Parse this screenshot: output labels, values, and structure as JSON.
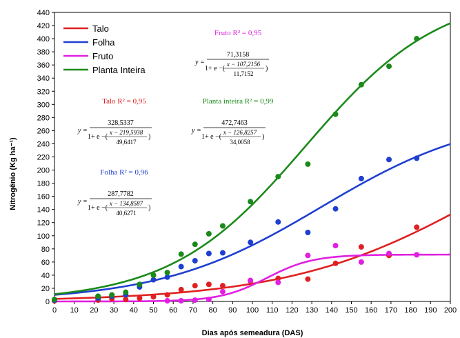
{
  "chart_data": {
    "type": "scatter",
    "xlabel": "Dias após semeadura (DAS)",
    "ylabel": "Nitrogênio (Kg ha⁻¹)",
    "xlim": [
      0,
      200
    ],
    "ylim": [
      0,
      440
    ],
    "xticks": [
      0,
      10,
      20,
      30,
      40,
      50,
      60,
      70,
      80,
      90,
      100,
      110,
      120,
      130,
      140,
      150,
      160,
      170,
      180,
      190,
      200
    ],
    "yticks": [
      0,
      20,
      40,
      60,
      80,
      100,
      120,
      140,
      160,
      180,
      200,
      220,
      240,
      260,
      280,
      300,
      320,
      340,
      360,
      380,
      400,
      420,
      440
    ],
    "grid": false,
    "legend_position": "top-left",
    "series": [
      {
        "name": "Talo",
        "color": "#e02020",
        "fit": {
          "a": 328.5337,
          "x0": 219.5938,
          "b": 49.6417,
          "y0": 0
        },
        "points": [
          [
            0,
            1
          ],
          [
            22,
            2
          ],
          [
            29,
            4
          ],
          [
            36,
            3
          ],
          [
            43,
            5
          ],
          [
            50,
            7
          ],
          [
            57,
            10
          ],
          [
            64,
            18
          ],
          [
            71,
            24
          ],
          [
            78,
            26
          ],
          [
            85,
            24
          ],
          [
            99,
            31
          ],
          [
            113,
            35
          ],
          [
            128,
            34
          ],
          [
            142,
            58
          ],
          [
            155,
            83
          ],
          [
            169,
            70
          ],
          [
            183,
            113
          ]
        ]
      },
      {
        "name": "Folha",
        "color": "#1f3fd0",
        "fit": {
          "a": 287.7782,
          "x0": 134.8587,
          "b": 40.6271,
          "y0": 0
        },
        "points": [
          [
            0,
            2
          ],
          [
            22,
            5
          ],
          [
            29,
            8
          ],
          [
            36,
            10
          ],
          [
            43,
            22
          ],
          [
            50,
            33
          ],
          [
            57,
            37
          ],
          [
            64,
            53
          ],
          [
            71,
            62
          ],
          [
            78,
            73
          ],
          [
            85,
            74
          ],
          [
            99,
            90
          ],
          [
            113,
            121
          ],
          [
            128,
            105
          ],
          [
            142,
            141
          ],
          [
            155,
            187
          ],
          [
            169,
            216
          ],
          [
            183,
            218
          ]
        ]
      },
      {
        "name": "Fruto",
        "color": "#e020e0",
        "fit": {
          "a": 71.3158,
          "x0": 107.2156,
          "b": 11.7152,
          "y0": 0
        },
        "points": [
          [
            57,
            1
          ],
          [
            64,
            1
          ],
          [
            71,
            2
          ],
          [
            78,
            3
          ],
          [
            85,
            15
          ],
          [
            99,
            32
          ],
          [
            113,
            29
          ],
          [
            128,
            70
          ],
          [
            142,
            85
          ],
          [
            155,
            60
          ],
          [
            169,
            73
          ],
          [
            183,
            71
          ]
        ]
      },
      {
        "name": "Planta Inteira",
        "color": "#1a8a1a",
        "fit": {
          "a": 472.7463,
          "x0": 126.8257,
          "b": 34.0058,
          "y0": 0
        },
        "points": [
          [
            0,
            3
          ],
          [
            22,
            8
          ],
          [
            29,
            10
          ],
          [
            36,
            14
          ],
          [
            43,
            26
          ],
          [
            50,
            40
          ],
          [
            57,
            44
          ],
          [
            64,
            72
          ],
          [
            71,
            87
          ],
          [
            78,
            103
          ],
          [
            85,
            115
          ],
          [
            99,
            152
          ],
          [
            113,
            190
          ],
          [
            128,
            209
          ],
          [
            142,
            285
          ],
          [
            155,
            330
          ],
          [
            169,
            358
          ],
          [
            183,
            400
          ]
        ]
      }
    ],
    "equations": [
      {
        "title": "Talo R² = 0,95",
        "a": "328,5337",
        "num": "x − 219,5938",
        "den": "49,6417",
        "color": "#e02020"
      },
      {
        "title": "Folha R² = 0,96",
        "a": "287,7782",
        "num": "x − 134,8587",
        "den": "40,6271",
        "color": "#1f3fd0"
      },
      {
        "title": "Fruto R² = 0,95",
        "a": "71,3158",
        "num": "x − 107,2156",
        "den": "11,7152",
        "color": "#e020e0"
      },
      {
        "title": "Planta inteira R² = 0,99",
        "a": "472,7463",
        "num": "x − 126,8257",
        "den": "34,0058",
        "color": "#1a8a1a"
      }
    ]
  }
}
